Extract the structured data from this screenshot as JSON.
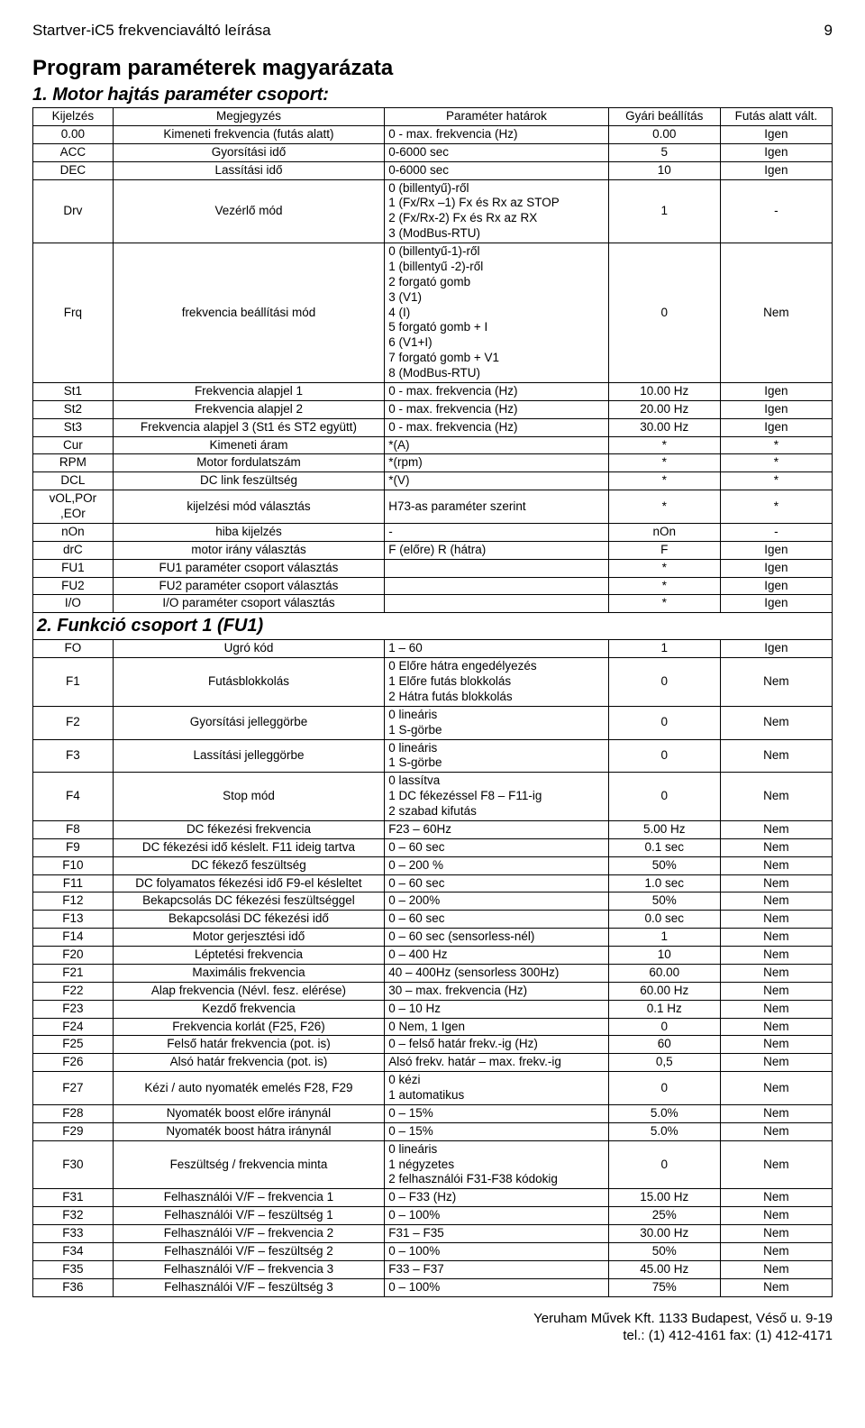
{
  "header": {
    "doc_title": "Startver-iC5 frekvenciaváltó leírása",
    "page_no": "9"
  },
  "titles": {
    "main": "Program paraméterek magyarázata",
    "section1": "1. Motor hajtás paraméter csoport:",
    "section2": "2. Funkció csoport 1 (FU1)"
  },
  "headers": [
    "Kijelzés",
    "Megjegyzés",
    "Paraméter határok",
    "Gyári beállítás",
    "Futás alatt vált."
  ],
  "rows1": [
    [
      "0.00",
      "Kimeneti frekvencia (futás alatt)",
      "0 - max. frekvencia (Hz)",
      "0.00",
      "Igen"
    ],
    [
      "ACC",
      "Gyorsítási idő",
      "0-6000 sec",
      "5",
      "Igen"
    ],
    [
      "DEC",
      "Lassítási idő",
      "0-6000 sec",
      "10",
      "Igen"
    ],
    [
      "Drv",
      "Vezérlő mód",
      "0 (billentyű)-ről\n1 (Fx/Rx –1) Fx és Rx az STOP\n2 (Fx/Rx-2)   Fx és Rx az RX\n3 (ModBus-RTU)",
      "1",
      "-"
    ],
    [
      "Frq",
      "frekvencia beállítási mód",
      "0 (billentyű-1)-ről\n1 (billentyű -2)-ről\n2 forgató gomb\n3 (V1)\n4 (I)\n5 forgató gomb + I\n6 (V1+I)\n7 forgató gomb + V1\n8 (ModBus-RTU)",
      "0",
      "Nem"
    ],
    [
      "St1",
      "Frekvencia alapjel 1",
      "0 - max. frekvencia (Hz)",
      "10.00 Hz",
      "Igen"
    ],
    [
      "St2",
      "Frekvencia alapjel 2",
      "0 - max. frekvencia (Hz)",
      "20.00 Hz",
      "Igen"
    ],
    [
      "St3",
      "Frekvencia alapjel 3 (St1 és ST2 együtt)",
      "0 - max. frekvencia (Hz)",
      "30.00 Hz",
      "Igen"
    ],
    [
      "Cur",
      "Kimeneti áram",
      "*(A)",
      "*",
      "*"
    ],
    [
      "RPM",
      "Motor fordulatszám",
      "*(rpm)",
      "*",
      "*"
    ],
    [
      "DCL",
      "DC link feszültség",
      "*(V)",
      "*",
      "*"
    ],
    [
      "vOL,POr\n,EOr",
      "kijelzési mód választás",
      "H73-as paraméter szerint",
      "*",
      "*"
    ],
    [
      "nOn",
      "hiba kijelzés",
      "-",
      "nOn",
      "-"
    ],
    [
      "drC",
      "motor irány választás",
      "F (előre) R (hátra)",
      "F",
      "Igen"
    ],
    [
      "FU1",
      "FU1 paraméter csoport választás",
      "",
      "*",
      "Igen"
    ],
    [
      "FU2",
      "FU2 paraméter csoport választás",
      "",
      "*",
      "Igen"
    ],
    [
      "I/O",
      "I/O paraméter csoport választás",
      "",
      "*",
      "Igen"
    ]
  ],
  "rows2": [
    [
      "FO",
      "Ugró kód",
      "1 – 60",
      "1",
      "Igen"
    ],
    [
      "F1",
      "Futásblokkolás",
      "0 Előre hátra engedélyezés\n1 Előre futás blokkolás\n2 Hátra futás blokkolás",
      "0",
      "Nem"
    ],
    [
      "F2",
      "Gyorsítási jelleggörbe",
      "0 lineáris\n1 S-görbe",
      "0",
      "Nem"
    ],
    [
      "F3",
      "Lassítási jelleggörbe",
      "0 lineáris\n1 S-görbe",
      "0",
      "Nem"
    ],
    [
      "F4",
      "Stop mód",
      "0 lassítva\n1 DC fékezéssel F8 – F11-ig\n2 szabad kifutás",
      "0",
      "Nem"
    ],
    [
      "F8",
      "DC fékezési frekvencia",
      "F23 – 60Hz",
      "5.00 Hz",
      "Nem"
    ],
    [
      "F9",
      "DC fékezési idő késlelt. F11 ideig tartva",
      "0 – 60 sec",
      "0.1 sec",
      "Nem"
    ],
    [
      "F10",
      "DC fékező feszültség",
      "0 – 200 %",
      "50%",
      "Nem"
    ],
    [
      "F11",
      "DC folyamatos fékezési idő F9-el késleltet",
      "0 – 60 sec",
      "1.0 sec",
      "Nem"
    ],
    [
      "F12",
      "Bekapcsolás DC fékezési feszültséggel",
      "0 – 200%",
      "50%",
      "Nem"
    ],
    [
      "F13",
      "Bekapcsolási DC fékezési idő",
      "0 – 60 sec",
      "0.0 sec",
      "Nem"
    ],
    [
      "F14",
      "Motor gerjesztési idő",
      "0 – 60 sec (sensorless-nél)",
      "1",
      "Nem"
    ],
    [
      "F20",
      "Léptetési frekvencia",
      "0 – 400 Hz",
      "10",
      "Nem"
    ],
    [
      "F21",
      "Maximális frekvencia",
      "40 – 400Hz (sensorless 300Hz)",
      "60.00",
      "Nem"
    ],
    [
      "F22",
      "Alap frekvencia (Névl. fesz. elérése)",
      "30 – max. frekvencia (Hz)",
      "60.00 Hz",
      "Nem"
    ],
    [
      "F23",
      "Kezdő frekvencia",
      "0 – 10 Hz",
      "0.1 Hz",
      "Nem"
    ],
    [
      "F24",
      "Frekvencia korlát (F25, F26)",
      "0 Nem, 1 Igen",
      "0",
      "Nem"
    ],
    [
      "F25",
      "Felső határ frekvencia (pot. is)",
      "0 – felső határ frekv.-ig (Hz)",
      "60",
      "Nem"
    ],
    [
      "F26",
      "Alsó határ frekvencia (pot. is)",
      "Alsó frekv. határ – max. frekv.-ig",
      "0,5",
      "Nem"
    ],
    [
      "F27",
      "Kézi / auto nyomaték emelés F28, F29",
      "0 kézi\n1 automatikus",
      "0",
      "Nem"
    ],
    [
      "F28",
      "Nyomaték boost előre iránynál",
      "0 – 15%",
      "5.0%",
      "Nem"
    ],
    [
      "F29",
      "Nyomaték boost hátra iránynál",
      "0 – 15%",
      "5.0%",
      "Nem"
    ],
    [
      "F30",
      "Feszültség / frekvencia minta",
      "0 lineáris\n1 négyzetes\n2 felhasználói F31-F38 kódokig",
      "0",
      "Nem"
    ],
    [
      "F31",
      "Felhasználói V/F – frekvencia 1",
      "0 – F33 (Hz)",
      "15.00 Hz",
      "Nem"
    ],
    [
      "F32",
      "Felhasználói V/F – feszültség 1",
      "0 – 100%",
      "25%",
      "Nem"
    ],
    [
      "F33",
      "Felhasználói V/F – frekvencia 2",
      "F31 – F35",
      "30.00 Hz",
      "Nem"
    ],
    [
      "F34",
      "Felhasználói V/F – feszültség 2",
      "0 – 100%",
      "50%",
      "Nem"
    ],
    [
      "F35",
      "Felhasználói V/F – frekvencia 3",
      "F33 – F37",
      "45.00 Hz",
      "Nem"
    ],
    [
      "F36",
      "Felhasználói V/F – feszültség 3",
      "0 – 100%",
      "75%",
      "Nem"
    ]
  ],
  "footer": {
    "line1": "Yeruham Művek Kft. 1133 Budapest, Véső u. 9-19",
    "line2": "tel.: (1) 412-4161 fax: (1) 412-4171"
  }
}
